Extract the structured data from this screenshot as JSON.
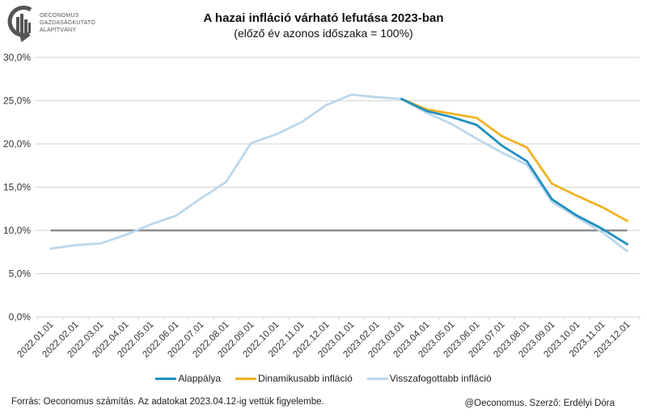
{
  "logo": {
    "lines": [
      "OECONOMUS",
      "GAZDASÁGKUTATÓ",
      "ALAPÍTVÁNY"
    ],
    "icon": "oeconomus-logo-icon"
  },
  "chart_data": {
    "type": "line",
    "title": "A hazai infláció várható lefutása 2023-ban",
    "subtitle": "(előző év azonos időszaka = 100%)",
    "xlabel": "",
    "ylabel": "",
    "ylim": [
      0,
      30
    ],
    "yticks": [
      0,
      5,
      10,
      15,
      20,
      25,
      30
    ],
    "ytick_labels": [
      "0,0%",
      "5,0%",
      "10,0%",
      "15,0%",
      "20,0%",
      "25,0%",
      "30,0%"
    ],
    "grid": true,
    "legend_position": "bottom",
    "categories": [
      "2022.01.01",
      "2022.02.01",
      "2022.03.01",
      "2022.04.01",
      "2022.05.01",
      "2022.06.01",
      "2022.07.01",
      "2022.08.01",
      "2022.09.01",
      "2022.10.01",
      "2022.11.01",
      "2022.12.01",
      "2023.01.01",
      "2023.02.01",
      "2023.03.01",
      "2023.04.01",
      "2023.05.01",
      "2023.06.01",
      "2023.07.01",
      "2023.08.01",
      "2023.09.01",
      "2023.10.01",
      "2023.11.01",
      "2023.12.01"
    ],
    "reference_line": {
      "value": 10,
      "color": "#8c8c8c"
    },
    "series": [
      {
        "name": "Visszafogottabb infláció",
        "color": "#bcd7ea",
        "values": [
          7.9,
          8.3,
          8.5,
          9.5,
          10.7,
          11.7,
          13.7,
          15.6,
          20.1,
          21.1,
          22.5,
          24.5,
          25.7,
          25.4,
          25.2,
          23.6,
          22.3,
          20.6,
          19.0,
          17.6,
          13.3,
          11.5,
          9.8,
          7.6
        ]
      },
      {
        "name": "Dinamikusabb infláció",
        "color": "#f0b323",
        "values": [
          null,
          null,
          null,
          null,
          null,
          null,
          null,
          null,
          null,
          null,
          null,
          null,
          null,
          null,
          25.2,
          24.0,
          23.5,
          23.0,
          20.9,
          19.6,
          15.4,
          14.0,
          12.7,
          11.1
        ]
      },
      {
        "name": "Alappálya",
        "color": "#1f8fc0",
        "values": [
          null,
          null,
          null,
          null,
          null,
          null,
          null,
          null,
          null,
          null,
          null,
          null,
          null,
          null,
          25.2,
          23.8,
          23.1,
          22.2,
          19.8,
          18.0,
          13.6,
          11.7,
          10.2,
          8.4
        ]
      }
    ],
    "legend_order": [
      "Alappálya",
      "Dinamikusabb infláció",
      "Visszafogottabb infláció"
    ]
  },
  "legend": [
    {
      "label": "Alappálya",
      "color": "#1f8fc0"
    },
    {
      "label": "Dinamikusabb infláció",
      "color": "#f0b323"
    },
    {
      "label": "Visszafogottabb infláció",
      "color": "#bcd7ea"
    }
  ],
  "footer": {
    "source": "Forrás: Oeconomus számítás. Az adatokat 2023.04.12-ig vettük figyelembe.",
    "author": "@Oeconomus. Szerző: Erdélyi Dóra"
  },
  "colors": {
    "grid": "#d9d9d9",
    "reference": "#8c8c8c"
  }
}
